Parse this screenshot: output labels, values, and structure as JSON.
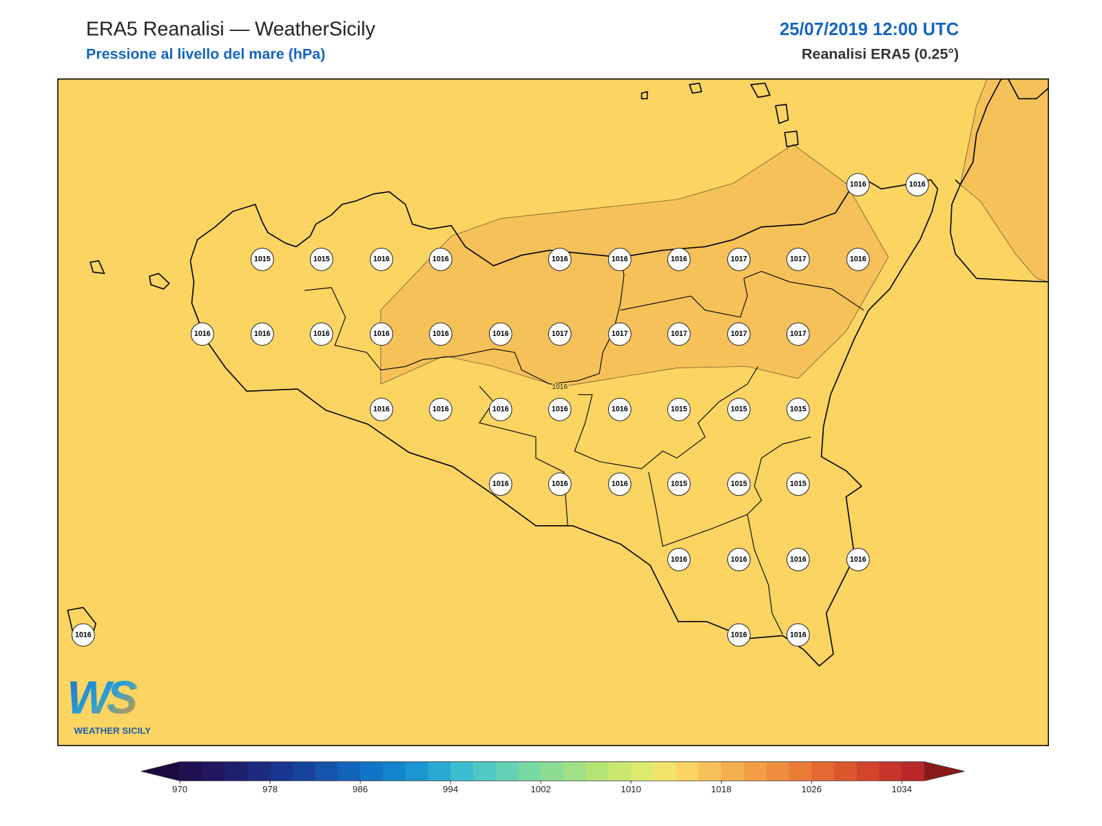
{
  "header": {
    "title": "ERA5 Reanalisi — WeatherSicily",
    "subtitle": "Pressione al livello del mare (hPa)",
    "date": "25/07/2019 12:00 UTC",
    "source": "Reanalisi ERA5 (0.25°)"
  },
  "map": {
    "stations": [
      1016,
      1016,
      1015,
      1015,
      1016,
      1016,
      1016,
      1016,
      1016,
      1017,
      1017,
      1016,
      1016,
      1016,
      1016,
      1016,
      1016,
      1016,
      1017,
      1017,
      1017,
      1017,
      1017,
      1016,
      1016,
      1016,
      1016,
      1016,
      1015,
      1015,
      1015,
      1016,
      1016,
      1016,
      1015,
      1015,
      1015,
      1016,
      1016,
      1016,
      1016,
      1016,
      1016,
      1016
    ],
    "contour_labels": [
      1016
    ]
  },
  "logo": {
    "text": "WS",
    "tagline": "WEATHER SICILY"
  },
  "colorbar": {
    "clim": [
      970,
      1036
    ],
    "ticks": [
      970,
      978,
      986,
      994,
      1002,
      1010,
      1018,
      1026,
      1034
    ],
    "colors": [
      "#1f1050",
      "#231660",
      "#1f1f70",
      "#1c2a80",
      "#19368e",
      "#16449c",
      "#1454aa",
      "#1264b8",
      "#1274c4",
      "#1285cc",
      "#1c97d2",
      "#2aa9d4",
      "#3cbcd0",
      "#50c8c4",
      "#64d0b4",
      "#78d8a4",
      "#8cdc94",
      "#a0e084",
      "#b4e474",
      "#c8e870",
      "#dcea70",
      "#f2e46c",
      "#fbd462",
      "#f6c158",
      "#f4b04e",
      "#f2a046",
      "#ee8e3e",
      "#ea7c38",
      "#e46832",
      "#dc562e",
      "#d2442c",
      "#c6342a",
      "#b82828"
    ],
    "extend_colors": [
      "#1a0a40",
      "#8a1a1a"
    ]
  }
}
